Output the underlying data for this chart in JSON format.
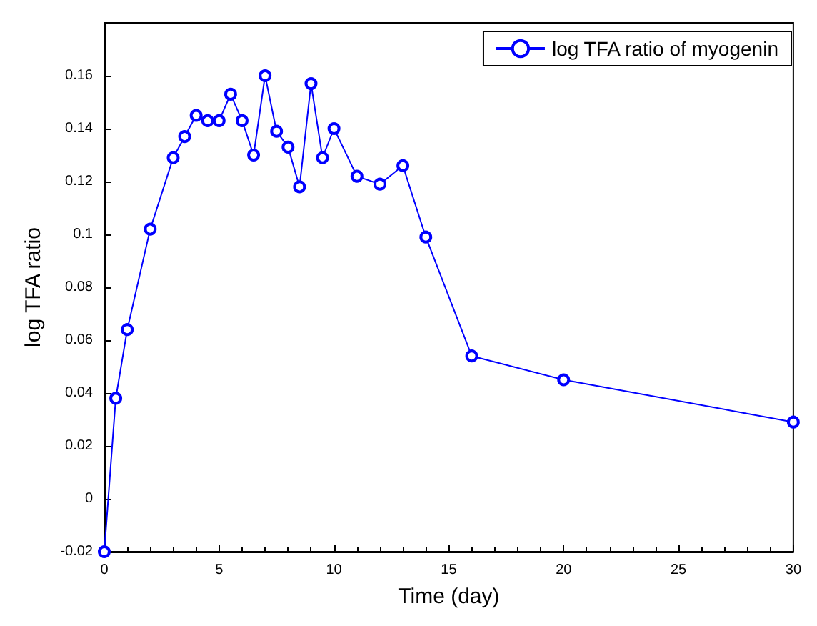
{
  "chart_data": {
    "type": "line",
    "xlabel": "Time (day)",
    "ylabel": "log TFA ratio",
    "x": [
      0,
      0.5,
      1,
      2,
      3,
      3.5,
      4,
      4.5,
      5,
      5.5,
      6,
      6.5,
      7,
      7.5,
      8,
      8.5,
      9,
      9.5,
      10,
      11,
      12,
      13,
      14,
      16,
      20,
      30
    ],
    "series": [
      {
        "name": "log TFA ratio of myogenin",
        "color": "#0000ff",
        "values": [
          -0.02,
          0.038,
          0.064,
          0.102,
          0.129,
          0.137,
          0.145,
          0.143,
          0.143,
          0.153,
          0.143,
          0.13,
          0.16,
          0.139,
          0.133,
          0.118,
          0.157,
          0.129,
          0.14,
          0.122,
          0.119,
          0.126,
          0.099,
          0.054,
          0.045,
          0.029
        ]
      }
    ],
    "xlim": [
      0,
      30
    ],
    "xticks": [
      0,
      5,
      10,
      15,
      20,
      25,
      30
    ],
    "ylim": [
      -0.02,
      0.18
    ],
    "yticks": [
      -0.02,
      0,
      0.02,
      0.04,
      0.06,
      0.08,
      0.1,
      0.12,
      0.14,
      0.16
    ],
    "grid": false,
    "legend": "top right",
    "marker": "circle",
    "line_style": "solid"
  }
}
